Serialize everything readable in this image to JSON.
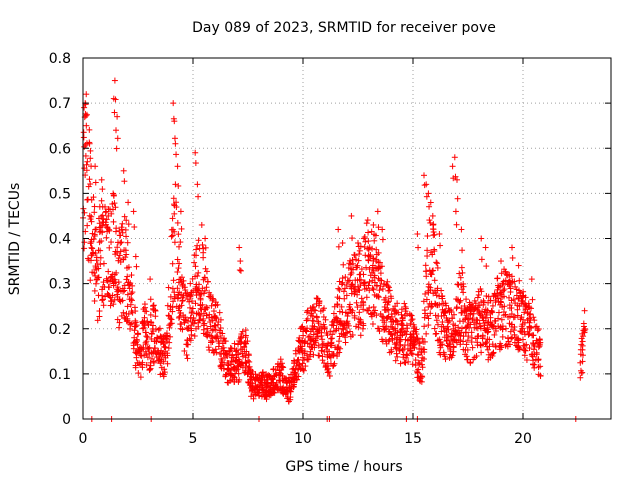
{
  "chart_data": {
    "type": "scatter",
    "title": "Day 089 of 2023, SRMTID for receiver pove",
    "xlabel": "GPS time / hours",
    "ylabel": "SRMTID / TECUs",
    "xlim": [
      0,
      24
    ],
    "ylim": [
      0,
      0.8
    ],
    "xticks": [
      0,
      5,
      10,
      15,
      20
    ],
    "xtick_labels": [
      "0",
      "5",
      "10",
      "15",
      "20"
    ],
    "yticks": [
      0,
      0.1,
      0.2,
      0.3,
      0.4,
      0.5,
      0.6,
      0.7,
      0.8
    ],
    "ytick_labels": [
      "0",
      "0.1",
      "0.2",
      "0.3",
      "0.4",
      "0.5",
      "0.6",
      "0.7",
      "0.8"
    ],
    "grid": true,
    "marker": "+",
    "color": "#ff0000",
    "series": [
      {
        "name": "SRMTID",
        "profile": [
          [
            0.0,
            0.5
          ],
          [
            0.2,
            0.55
          ],
          [
            0.4,
            0.4
          ],
          [
            0.6,
            0.32
          ],
          [
            0.8,
            0.36
          ],
          [
            1.0,
            0.38
          ],
          [
            1.2,
            0.34
          ],
          [
            1.4,
            0.38
          ],
          [
            1.6,
            0.3
          ],
          [
            1.8,
            0.36
          ],
          [
            2.0,
            0.32
          ],
          [
            2.2,
            0.25
          ],
          [
            2.4,
            0.17
          ],
          [
            2.6,
            0.13
          ],
          [
            2.8,
            0.2
          ],
          [
            3.0,
            0.16
          ],
          [
            3.2,
            0.19
          ],
          [
            3.4,
            0.17
          ],
          [
            3.6,
            0.13
          ],
          [
            3.8,
            0.15
          ],
          [
            4.0,
            0.3
          ],
          [
            4.2,
            0.42
          ],
          [
            4.4,
            0.3
          ],
          [
            4.6,
            0.22
          ],
          [
            4.8,
            0.2
          ],
          [
            5.0,
            0.26
          ],
          [
            5.2,
            0.31
          ],
          [
            5.4,
            0.3
          ],
          [
            5.6,
            0.25
          ],
          [
            5.8,
            0.22
          ],
          [
            6.0,
            0.2
          ],
          [
            6.2,
            0.18
          ],
          [
            6.4,
            0.14
          ],
          [
            6.6,
            0.12
          ],
          [
            6.8,
            0.13
          ],
          [
            7.0,
            0.12
          ],
          [
            7.2,
            0.14
          ],
          [
            7.4,
            0.16
          ],
          [
            7.6,
            0.08
          ],
          [
            7.8,
            0.07
          ],
          [
            8.0,
            0.07
          ],
          [
            8.2,
            0.08
          ],
          [
            8.4,
            0.07
          ],
          [
            8.6,
            0.08
          ],
          [
            8.8,
            0.09
          ],
          [
            9.0,
            0.1
          ],
          [
            9.2,
            0.07
          ],
          [
            9.4,
            0.06
          ],
          [
            9.6,
            0.1
          ],
          [
            9.8,
            0.14
          ],
          [
            10.0,
            0.16
          ],
          [
            10.2,
            0.18
          ],
          [
            10.4,
            0.19
          ],
          [
            10.6,
            0.2
          ],
          [
            10.8,
            0.21
          ],
          [
            11.0,
            0.18
          ],
          [
            11.2,
            0.14
          ],
          [
            11.4,
            0.18
          ],
          [
            11.6,
            0.22
          ],
          [
            11.8,
            0.24
          ],
          [
            12.0,
            0.26
          ],
          [
            12.2,
            0.28
          ],
          [
            12.4,
            0.3
          ],
          [
            12.6,
            0.28
          ],
          [
            12.8,
            0.32
          ],
          [
            13.0,
            0.33
          ],
          [
            13.2,
            0.31
          ],
          [
            13.4,
            0.3
          ],
          [
            13.6,
            0.26
          ],
          [
            13.8,
            0.23
          ],
          [
            14.0,
            0.21
          ],
          [
            14.2,
            0.2
          ],
          [
            14.4,
            0.18
          ],
          [
            14.6,
            0.19
          ],
          [
            14.8,
            0.18
          ],
          [
            15.0,
            0.17
          ],
          [
            15.2,
            0.14
          ],
          [
            15.4,
            0.12
          ],
          [
            15.6,
            0.28
          ],
          [
            15.8,
            0.36
          ],
          [
            16.0,
            0.3
          ],
          [
            16.2,
            0.22
          ],
          [
            16.4,
            0.2
          ],
          [
            16.6,
            0.18
          ],
          [
            16.8,
            0.2
          ],
          [
            17.0,
            0.22
          ],
          [
            17.2,
            0.26
          ],
          [
            17.4,
            0.2
          ],
          [
            17.6,
            0.19
          ],
          [
            17.8,
            0.2
          ],
          [
            18.0,
            0.22
          ],
          [
            18.2,
            0.21
          ],
          [
            18.4,
            0.2
          ],
          [
            18.6,
            0.21
          ],
          [
            18.8,
            0.23
          ],
          [
            19.0,
            0.24
          ],
          [
            19.2,
            0.25
          ],
          [
            19.4,
            0.24
          ],
          [
            19.6,
            0.23
          ],
          [
            19.8,
            0.22
          ],
          [
            20.0,
            0.21
          ],
          [
            20.2,
            0.2
          ],
          [
            20.4,
            0.18
          ],
          [
            20.6,
            0.16
          ],
          [
            20.8,
            0.14
          ],
          [
            22.6,
            0.13
          ],
          [
            22.8,
            0.17
          ]
        ],
        "spikes": [
          [
            0.05,
            0.69
          ],
          [
            0.1,
            0.7
          ],
          [
            0.15,
            0.65
          ],
          [
            0.3,
            0.61
          ],
          [
            0.55,
            0.56
          ],
          [
            0.85,
            0.53
          ],
          [
            1.0,
            0.47
          ],
          [
            1.15,
            0.45
          ],
          [
            1.4,
            0.71
          ],
          [
            1.45,
            0.75
          ],
          [
            1.55,
            0.67
          ],
          [
            1.5,
            0.64
          ],
          [
            1.85,
            0.55
          ],
          [
            2.05,
            0.48
          ],
          [
            2.3,
            0.46
          ],
          [
            2.4,
            0.36
          ],
          [
            3.05,
            0.31
          ],
          [
            4.1,
            0.7
          ],
          [
            4.15,
            0.66
          ],
          [
            4.2,
            0.61
          ],
          [
            4.3,
            0.56
          ],
          [
            4.2,
            0.52
          ],
          [
            4.45,
            0.46
          ],
          [
            5.1,
            0.59
          ],
          [
            5.2,
            0.52
          ],
          [
            5.4,
            0.43
          ],
          [
            5.55,
            0.4
          ],
          [
            7.1,
            0.38
          ],
          [
            7.15,
            0.35
          ],
          [
            11.6,
            0.42
          ],
          [
            11.8,
            0.39
          ],
          [
            12.2,
            0.45
          ],
          [
            12.5,
            0.39
          ],
          [
            13.2,
            0.43
          ],
          [
            13.4,
            0.46
          ],
          [
            13.6,
            0.42
          ],
          [
            15.2,
            0.41
          ],
          [
            15.5,
            0.54
          ],
          [
            15.6,
            0.52
          ],
          [
            15.7,
            0.5
          ],
          [
            15.9,
            0.45
          ],
          [
            16.2,
            0.41
          ],
          [
            16.8,
            0.56
          ],
          [
            16.9,
            0.58
          ],
          [
            17.0,
            0.53
          ],
          [
            16.95,
            0.46
          ],
          [
            17.2,
            0.42
          ],
          [
            18.1,
            0.4
          ],
          [
            18.3,
            0.38
          ],
          [
            19.0,
            0.35
          ],
          [
            19.5,
            0.38
          ],
          [
            19.8,
            0.34
          ],
          [
            20.4,
            0.31
          ],
          [
            22.8,
            0.24
          ]
        ],
        "baseline_markers": [
          0.4,
          1.3,
          3.1,
          8.0,
          11.1,
          11.2,
          14.7,
          15.2,
          22.4
        ]
      }
    ]
  }
}
